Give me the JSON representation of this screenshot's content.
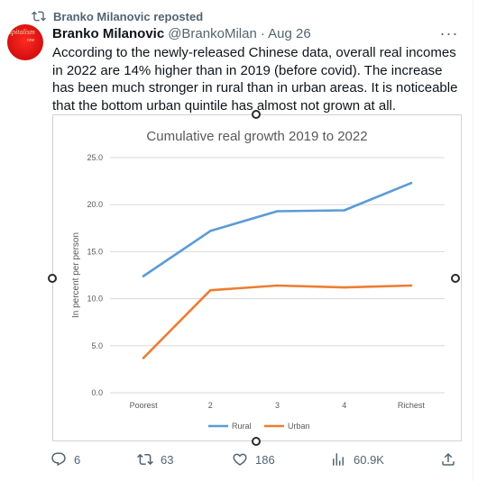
{
  "repost": {
    "label": "Branko Milanovic reposted",
    "icon": "repost-icon"
  },
  "author": {
    "name": "Branko Milanovic",
    "handle": "@BrankoMilan",
    "date": "· Aug 26",
    "avatar_text": "apitalism",
    "avatar_sub": "one"
  },
  "more_label": "···",
  "tweet_text": "According to the newly-released Chinese data, overall real incomes in 2022 are 14% higher than in 2019 (before covid).  The increase has been much stronger in rural than in urban areas.  It is noticeable that the bottom urban quintile has almost not grown at all.",
  "chart_data": {
    "type": "line",
    "title": "Cumulative real growth 2019 to 2022",
    "ylabel": "In percent per person",
    "xlabel": "",
    "categories": [
      "Poorest",
      "2",
      "3",
      "4",
      "Richest"
    ],
    "ylim": [
      0,
      25
    ],
    "yticks": [
      "0.0",
      "5.0",
      "10.0",
      "15.0",
      "20.0",
      "25.0"
    ],
    "grid": true,
    "legend_position": "bottom",
    "series": [
      {
        "name": "Rural",
        "color": "#5b9bd5",
        "values": [
          12.4,
          17.2,
          19.3,
          19.4,
          22.3
        ]
      },
      {
        "name": "Urban",
        "color": "#ed7d31",
        "values": [
          3.7,
          10.9,
          11.4,
          11.2,
          11.4
        ]
      }
    ]
  },
  "actions": {
    "reply": {
      "count": "6",
      "icon": "reply-icon"
    },
    "repost": {
      "count": "63",
      "icon": "repost-icon"
    },
    "like": {
      "count": "186",
      "icon": "heart-icon"
    },
    "views": {
      "count": "60.9K",
      "icon": "views-icon"
    },
    "share": {
      "icon": "share-icon"
    }
  }
}
